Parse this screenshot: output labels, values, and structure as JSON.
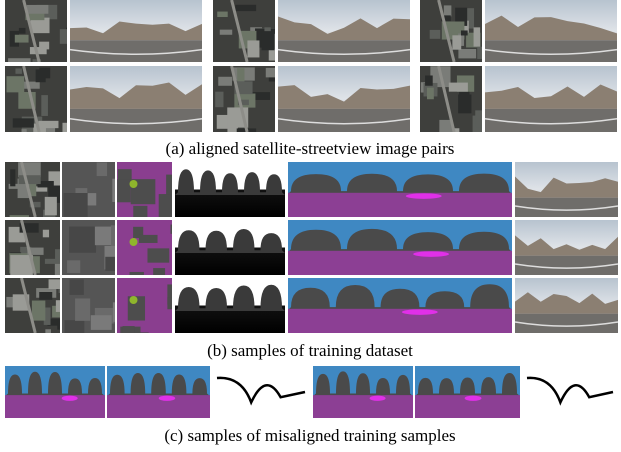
{
  "captions": [
    "(a) aligned satellite-streetview image pairs",
    "(b) samples of training dataset",
    "(c) samples of misaligned training samples"
  ]
}
